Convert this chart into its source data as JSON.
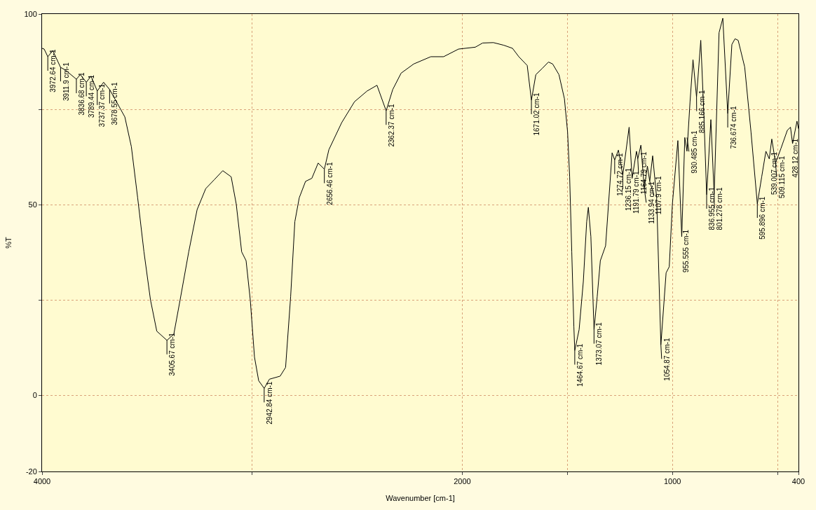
{
  "chart_data": {
    "type": "line",
    "xlabel": "Wavenumber [cm-1]",
    "ylabel": "%T",
    "color": "#000000",
    "x": [
      4000,
      3990,
      3972.64,
      3949,
      3911.9,
      3889,
      3836.68,
      3818,
      3789.44,
      3767,
      3737.37,
      3707,
      3678.55,
      3646,
      3606,
      3575,
      3545,
      3515,
      3484,
      3454,
      3405.67,
      3373,
      3343,
      3302,
      3262,
      3221,
      3181,
      3140,
      3100,
      3076,
      3050,
      3029,
      3009,
      2989,
      2969,
      2942.84,
      2918,
      2867,
      2841,
      2817,
      2797,
      2776,
      2746,
      2716,
      2686,
      2656.46,
      2635,
      2574,
      2513,
      2453,
      2406,
      2362.37,
      2331,
      2291,
      2231,
      2150,
      2089,
      2018,
      1938,
      1903,
      1852,
      1802,
      1761,
      1731,
      1691,
      1671.02,
      1650,
      1620,
      1590,
      1570,
      1540,
      1514,
      1499,
      1489,
      1479,
      1469,
      1464.67,
      1444,
      1424,
      1408,
      1400,
      1388,
      1373.07,
      1358,
      1343,
      1318,
      1287,
      1274.72,
      1257,
      1236.15,
      1206,
      1191.79,
      1171,
      1164.79,
      1150,
      1133.94,
      1119,
      1107.9,
      1094,
      1075,
      1054.87,
      1030,
      1015,
      1000,
      974,
      955.555,
      941,
      930.485,
      916,
      902,
      885.166,
      865,
      851,
      836.955,
      817,
      801.278,
      778,
      760,
      736.674,
      717,
      702,
      687,
      656,
      626,
      595.896,
      575,
      555,
      539.007,
      527,
      509.115,
      483,
      453,
      438,
      428.12,
      407,
      400
    ],
    "values": [
      91,
      90.8,
      88.8,
      90.4,
      86,
      85.3,
      82.9,
      84.1,
      82.1,
      83.7,
      79.8,
      82.1,
      80.2,
      77,
      73,
      65.2,
      51.8,
      37.6,
      25,
      16.8,
      14.4,
      16,
      25,
      37.6,
      48.7,
      54.2,
      56.5,
      58.9,
      57.3,
      50.2,
      37.6,
      35.3,
      25,
      10,
      3.8,
      1.8,
      4.2,
      5,
      7.3,
      25.8,
      45.5,
      51.8,
      56.1,
      56.9,
      60.9,
      59.3,
      64.4,
      71.5,
      77,
      79.8,
      81.3,
      74.6,
      80.2,
      84.5,
      86.9,
      88.8,
      88.8,
      90.8,
      91.3,
      92.4,
      92.5,
      91.8,
      91,
      88.8,
      86.5,
      77.4,
      84.1,
      85.7,
      87.4,
      86.9,
      84.1,
      77.8,
      69.1,
      57.3,
      37.6,
      18,
      11.7,
      17.2,
      29.8,
      45.5,
      49.3,
      41.6,
      17.2,
      25.8,
      35.3,
      39.2,
      63.6,
      61.7,
      64.3,
      57.7,
      70.3,
      56.9,
      64,
      62,
      65.6,
      54.2,
      60.1,
      56.1,
      62.8,
      51.8,
      13.2,
      32.1,
      33.7,
      50.2,
      66.8,
      41.6,
      67.6,
      64,
      77,
      88,
      78.2,
      93.1,
      74.6,
      52.6,
      72.3,
      52.6,
      95.1,
      98.9,
      73.9,
      92,
      93.5,
      93.1,
      86.1,
      69.1,
      50.2,
      57.3,
      64,
      62,
      67.2,
      60.9,
      64.8,
      69.5,
      70.3,
      66,
      71.9,
      69.9
    ],
    "xlim": [
      4000,
      400
    ],
    "xticks": [
      4000,
      {
        "value": 3000,
        "label": null
      },
      2000,
      {
        "value": 1500,
        "label": null
      },
      1000,
      {
        "value": 500,
        "label": null
      },
      400
    ],
    "ylim": [
      -20,
      100
    ],
    "yticks": [
      -20,
      0,
      {
        "value": 25,
        "label": null
      },
      50,
      {
        "value": 75,
        "label": null
      },
      100
    ],
    "grid": true,
    "annotations": [
      {
        "text": "3972.64 cm-1",
        "x": 3972.64,
        "y": 88.8
      },
      {
        "text": "3911.9 cm-1",
        "x": 3911.9,
        "y": 86
      },
      {
        "text": "3836.68 cm-1",
        "x": 3836.68,
        "y": 82.9
      },
      {
        "text": "3789.44 cm-1",
        "x": 3789.44,
        "y": 82.1
      },
      {
        "text": "3737.37 cm-1",
        "x": 3737.37,
        "y": 79.8
      },
      {
        "text": "3678.55 cm-1",
        "x": 3678.55,
        "y": 80.2
      },
      {
        "text": "3405.67 cm-1",
        "x": 3405.67,
        "y": 14.4
      },
      {
        "text": "2942.84 cm-1",
        "x": 2942.84,
        "y": 1.8
      },
      {
        "text": "2656.46 cm-1",
        "x": 2656.46,
        "y": 59.3
      },
      {
        "text": "2362.37 cm-1",
        "x": 2362.37,
        "y": 74.6
      },
      {
        "text": "1671.02 cm-1",
        "x": 1671.02,
        "y": 77.4
      },
      {
        "text": "1464.67 cm-1",
        "x": 1464.67,
        "y": 11.7
      },
      {
        "text": "1373.07 cm-1",
        "x": 1373.07,
        "y": 17.2
      },
      {
        "text": "1274.72 cm-1",
        "x": 1274.72,
        "y": 61.7
      },
      {
        "text": "1236.15 cm-1",
        "x": 1236.15,
        "y": 57.7
      },
      {
        "text": "1191.79 cm-1",
        "x": 1191.79,
        "y": 56.9
      },
      {
        "text": "1164.79 cm-1",
        "x": 1164.79,
        "y": 62
      },
      {
        "text": "1133.94 cm-1",
        "x": 1133.94,
        "y": 54.2
      },
      {
        "text": "1107.9 cm-1",
        "x": 1107.9,
        "y": 56.1
      },
      {
        "text": "1054.87 cm-1",
        "x": 1054.87,
        "y": 13.2
      },
      {
        "text": "955.555 cm-1",
        "x": 955.555,
        "y": 41.6
      },
      {
        "text": "930.485 cm-1",
        "x": 930.485,
        "y": 67.6
      },
      {
        "text": "885.166 cm-1",
        "x": 885.166,
        "y": 78.2
      },
      {
        "text": "836.955 cm-1",
        "x": 836.955,
        "y": 52.6
      },
      {
        "text": "801.278 cm-1",
        "x": 801.278,
        "y": 52.6
      },
      {
        "text": "736.674 cm-1",
        "x": 736.674,
        "y": 73.9
      },
      {
        "text": "595.896 cm-1",
        "x": 595.896,
        "y": 50.2
      },
      {
        "text": "539.007 cm-1",
        "x": 539.007,
        "y": 62
      },
      {
        "text": "509.115 cm-1",
        "x": 509.115,
        "y": 60.9
      },
      {
        "text": "428.12 cm-1",
        "x": 428.12,
        "y": 66
      }
    ]
  }
}
